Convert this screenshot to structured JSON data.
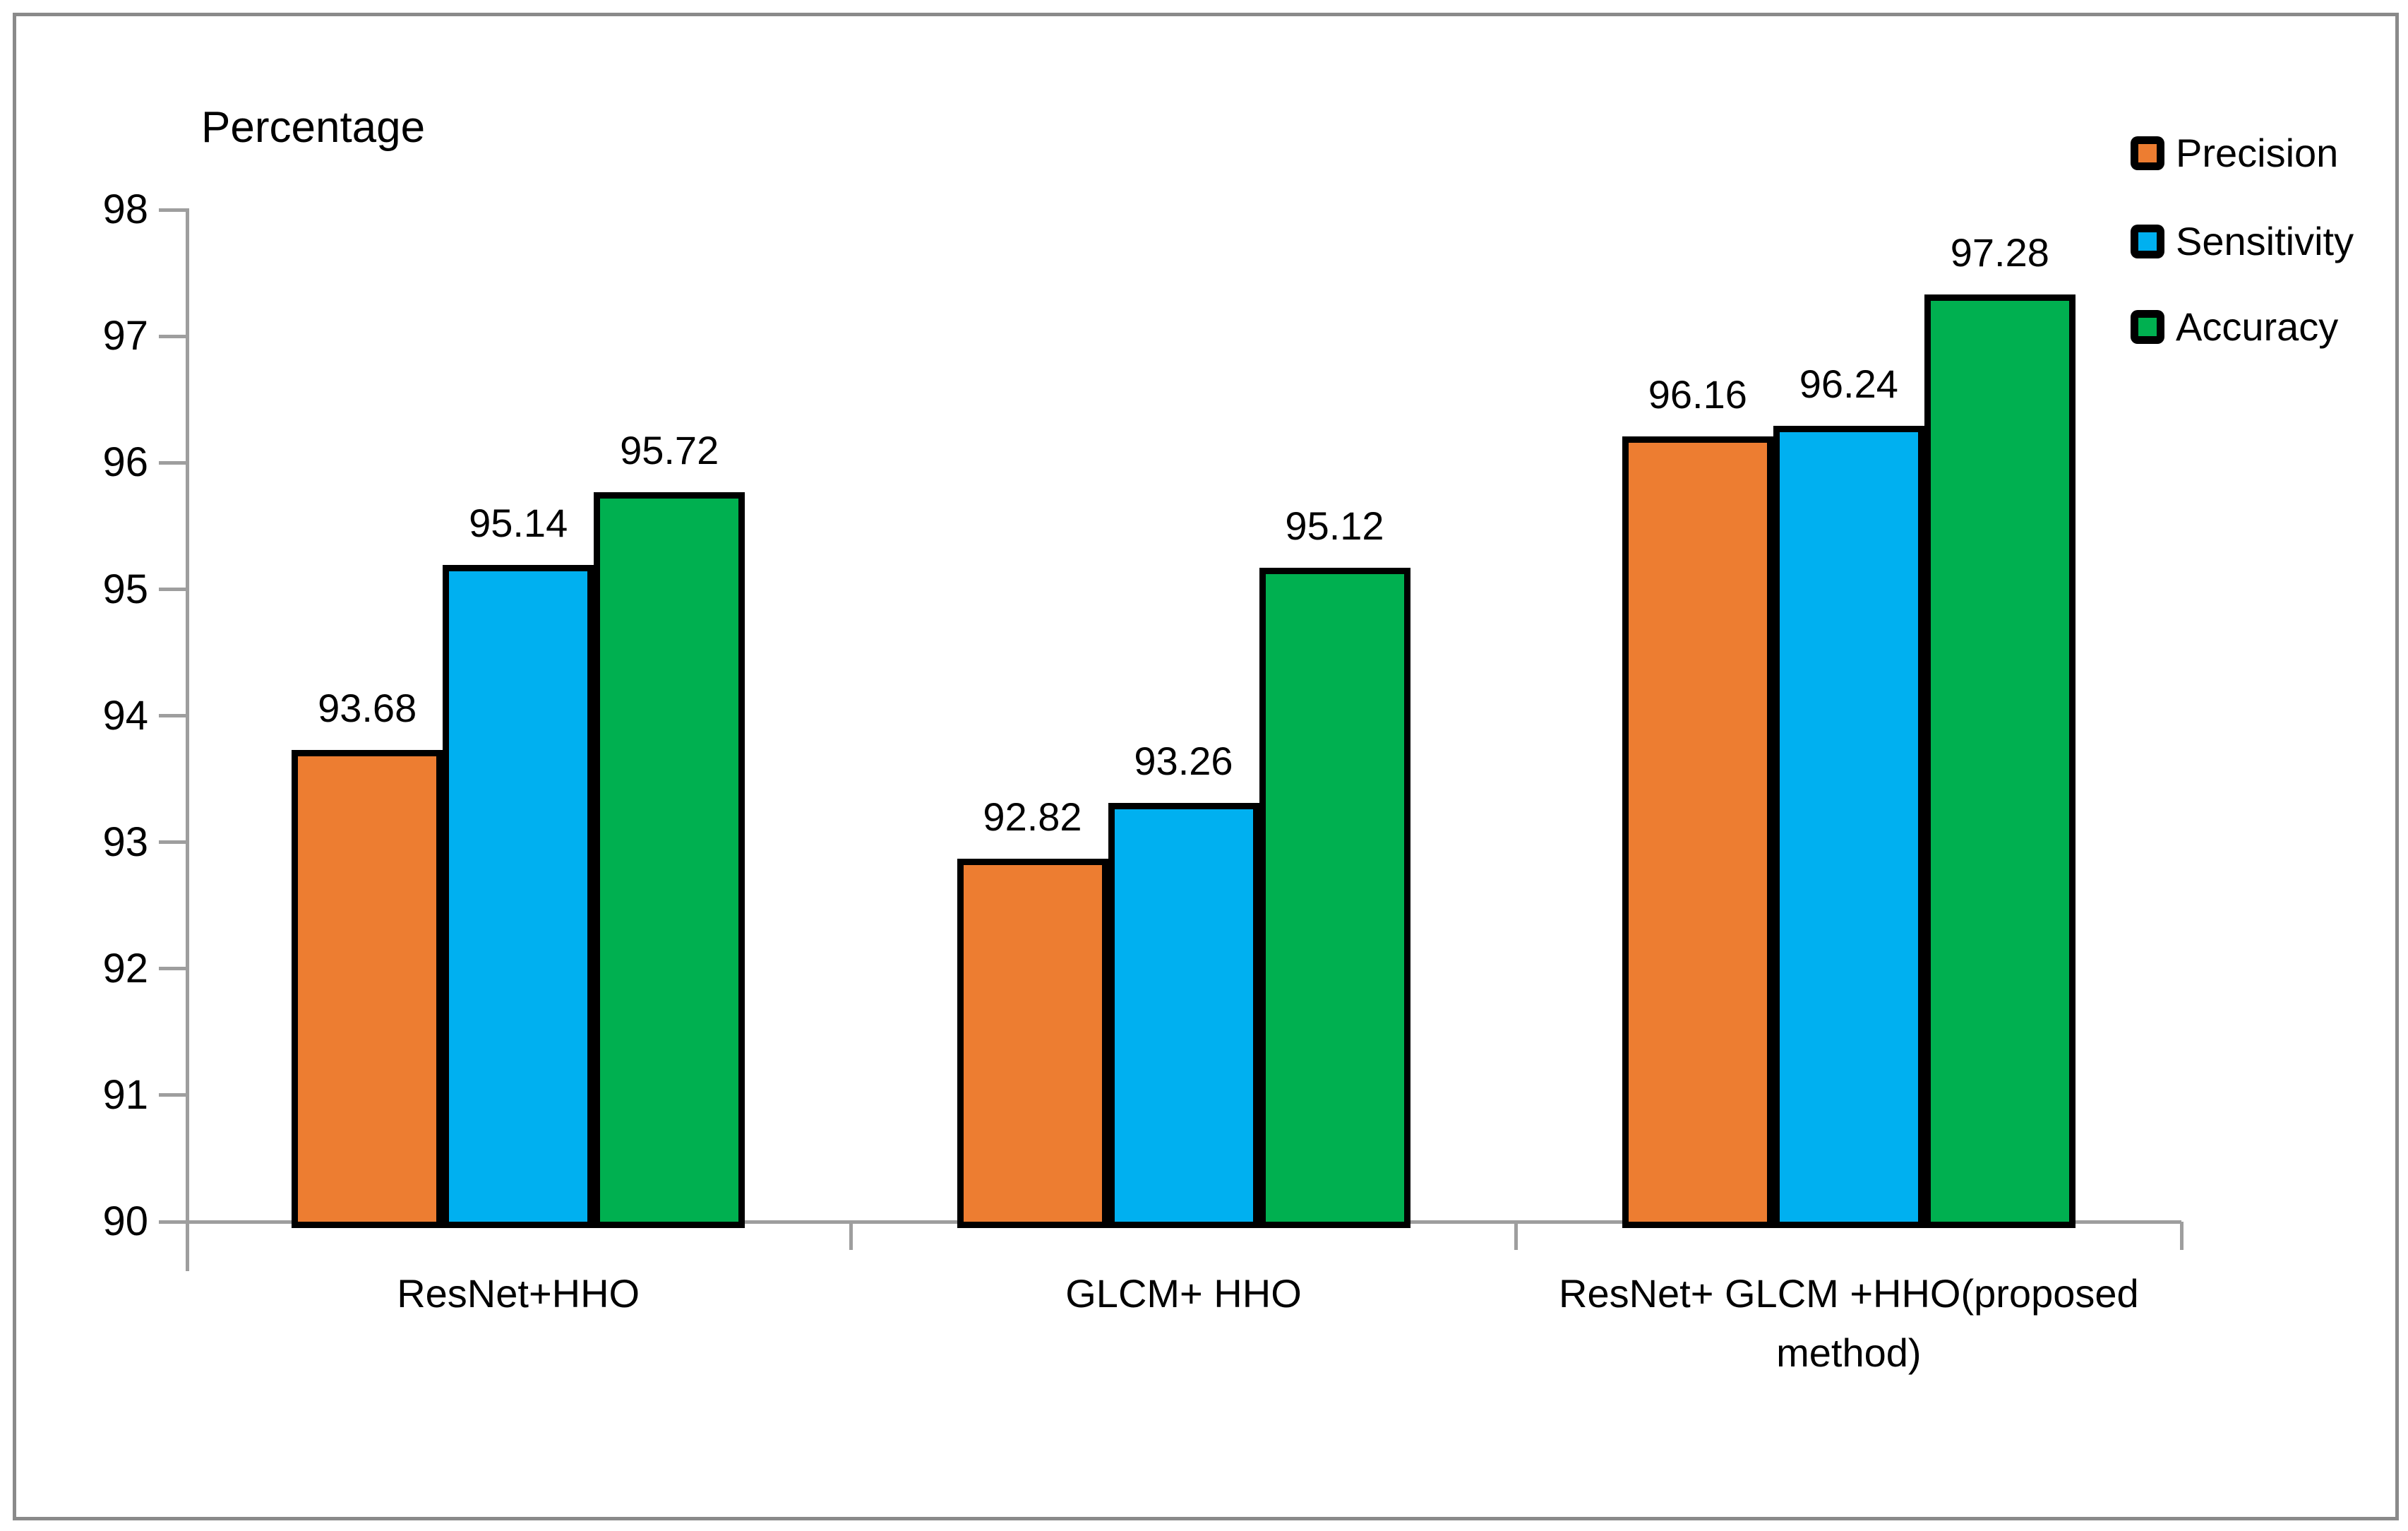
{
  "chart_data": {
    "type": "bar",
    "title": "Percentage",
    "categories": [
      "ResNet+HHO",
      "GLCM+ HHO",
      "ResNet+ GLCM +HHO(proposed method)"
    ],
    "series": [
      {
        "name": "Precision",
        "color": "#ED7D31",
        "values": [
          93.68,
          92.82,
          96.16
        ]
      },
      {
        "name": "Sensitivity",
        "color": "#00B0F0",
        "values": [
          95.14,
          93.26,
          96.24
        ]
      },
      {
        "name": "Accuracy",
        "color": "#00B050",
        "values": [
          95.72,
          95.12,
          97.28
        ]
      }
    ],
    "ylim": [
      90,
      98
    ],
    "yticks": [
      90,
      91,
      92,
      93,
      94,
      95,
      96,
      97,
      98
    ],
    "grid": false,
    "value_labels": true,
    "legend_position": "top-right"
  },
  "colors": {
    "axis": "#9E9E9E",
    "frame": "#8A8A8A",
    "bar_border": "#000000",
    "text": "#000000"
  }
}
